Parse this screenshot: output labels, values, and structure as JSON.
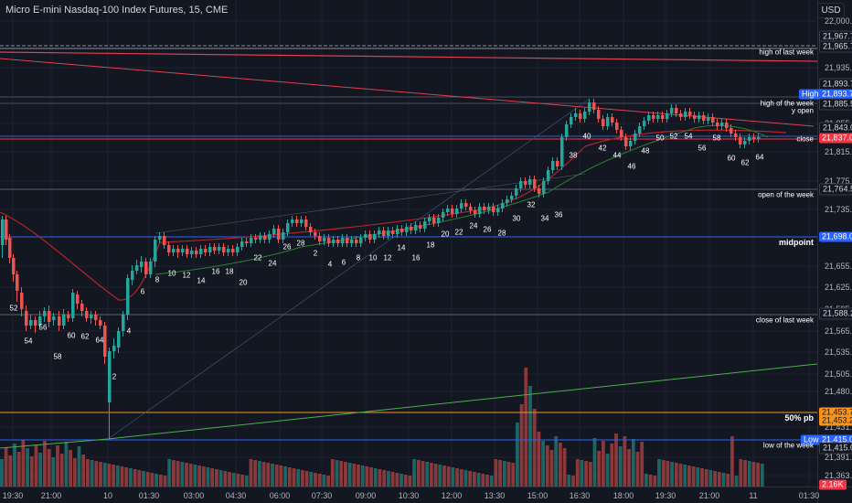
{
  "title": "Micro E-mini Nasdaq-100 Index Futures, 15, CME",
  "currency_button": "USD",
  "price_ticks": [
    "22,000.00",
    "21,935.00",
    "21,855.00",
    "21,815.00",
    "21,775.00",
    "21,735.00",
    "21,655.00",
    "21,625.00",
    "21,595.00",
    "21,565.00",
    "21,535.00",
    "21,505.00",
    "21,480.00",
    "21,431.00",
    "21,391.00",
    "21,363.00"
  ],
  "price_labels": [
    {
      "id": "p21967",
      "text": "21,967.75",
      "kind": "plain"
    },
    {
      "id": "p21965",
      "text": "21,965.75",
      "kind": "plain"
    },
    {
      "id": "p21893",
      "text": "21,893.75",
      "kind": "plain"
    },
    {
      "id": "high_tag",
      "text": "High",
      "kind": "blue"
    },
    {
      "id": "high_val",
      "text": "21,893.75",
      "kind": "blue"
    },
    {
      "id": "p21885",
      "text": "21,885.50",
      "kind": "plain"
    },
    {
      "id": "p21843",
      "text": "21,843.00",
      "kind": "plain"
    },
    {
      "id": "p21837",
      "text": "21,837.00",
      "kind": "red"
    },
    {
      "id": "p21764",
      "text": "21,764.50",
      "kind": "plain"
    },
    {
      "id": "p21698",
      "text": "21,698.00",
      "kind": "blue"
    },
    {
      "id": "p21588",
      "text": "21,588.25",
      "kind": "plain"
    },
    {
      "id": "p21453a",
      "text": "21,453.75",
      "kind": "orange"
    },
    {
      "id": "p21453b",
      "text": "21,453.25",
      "kind": "orange"
    },
    {
      "id": "low_tag",
      "text": "Low",
      "kind": "blue"
    },
    {
      "id": "low_val",
      "text": "21,415.00",
      "kind": "blue"
    },
    {
      "id": "p21415",
      "text": "21,415.00",
      "kind": "plain"
    },
    {
      "id": "vol",
      "text": "2.16K",
      "kind": "red"
    }
  ],
  "level_labels": [
    {
      "id": "ath",
      "text": "high of last week"
    },
    {
      "id": "how",
      "text": "high of the week"
    },
    {
      "id": "yopen",
      "text": "y open"
    },
    {
      "id": "close",
      "text": "close"
    },
    {
      "id": "oow",
      "text": "open of the week"
    },
    {
      "id": "mid",
      "text": "midpoint"
    },
    {
      "id": "clw",
      "text": "close of last week"
    },
    {
      "id": "pb",
      "text": "50% pb"
    },
    {
      "id": "low",
      "text": "low of the week"
    }
  ],
  "time_labels": [
    "19:30",
    "21:00",
    "10",
    "01:30",
    "03:00",
    "04:30",
    "06:00",
    "07:30",
    "09:00",
    "10:30",
    "12:00",
    "13:30",
    "15:00",
    "16:30",
    "18:00",
    "19:30",
    "21:00",
    "11",
    "01:30"
  ],
  "bar_counts": [
    "52",
    "54",
    "56",
    "58",
    "60",
    "62",
    "64",
    "2",
    "4",
    "6",
    "8",
    "10",
    "12",
    "14",
    "16",
    "18",
    "20",
    "22",
    "24",
    "26",
    "28",
    "2",
    "4",
    "6",
    "8",
    "10",
    "12",
    "14",
    "16",
    "18",
    "20",
    "22",
    "24",
    "26",
    "28",
    "30",
    "32",
    "34",
    "36",
    "38",
    "40",
    "42",
    "44",
    "46",
    "48",
    "50",
    "52",
    "54",
    "56",
    "58",
    "60",
    "62",
    "64"
  ],
  "colors": {
    "background": "#131722",
    "up": "#26a69a",
    "down": "#ef5350",
    "grid": "#1e222d",
    "level_line": "#5d606b",
    "ma_red": "#b2242a",
    "ma_green": "#2e7d32",
    "blue_tag": "#2962ff",
    "orange_tag": "#f7931a",
    "red_tag": "#f23645"
  }
}
